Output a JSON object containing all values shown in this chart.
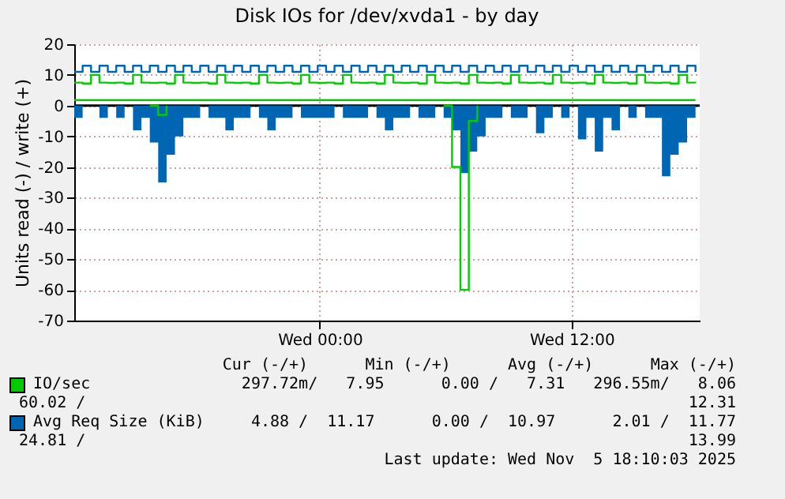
{
  "chart_data": {
    "type": "step",
    "title": "Disk IOs for /dev/xvda1 - by day",
    "ylabel": "Units read (-) / write (+)",
    "x": [
      "2025-11-04T12:18",
      "2025-11-04T12:42",
      "2025-11-04T13:06",
      "2025-11-04T13:30",
      "2025-11-04T13:54",
      "2025-11-04T14:18",
      "2025-11-04T14:42",
      "2025-11-04T15:06",
      "2025-11-04T15:30",
      "2025-11-04T15:54",
      "2025-11-04T16:18",
      "2025-11-04T16:42",
      "2025-11-04T17:06",
      "2025-11-04T17:30",
      "2025-11-04T17:54",
      "2025-11-04T18:18",
      "2025-11-04T18:42",
      "2025-11-04T19:06",
      "2025-11-04T19:30",
      "2025-11-04T19:54",
      "2025-11-04T20:18",
      "2025-11-04T20:42",
      "2025-11-04T21:06",
      "2025-11-04T21:30",
      "2025-11-04T21:54",
      "2025-11-04T22:18",
      "2025-11-04T22:42",
      "2025-11-04T23:06",
      "2025-11-04T23:30",
      "2025-11-04T23:54",
      "2025-11-05T00:18",
      "2025-11-05T00:42",
      "2025-11-05T01:06",
      "2025-11-05T01:30",
      "2025-11-05T01:54",
      "2025-11-05T02:18",
      "2025-11-05T02:42",
      "2025-11-05T03:06",
      "2025-11-05T03:30",
      "2025-11-05T03:54",
      "2025-11-05T04:18",
      "2025-11-05T04:42",
      "2025-11-05T05:06",
      "2025-11-05T05:30",
      "2025-11-05T05:54",
      "2025-11-05T06:18",
      "2025-11-05T06:42",
      "2025-11-05T07:06",
      "2025-11-05T07:30",
      "2025-11-05T07:54",
      "2025-11-05T08:18",
      "2025-11-05T08:42",
      "2025-11-05T09:06",
      "2025-11-05T09:30",
      "2025-11-05T09:54",
      "2025-11-05T10:18",
      "2025-11-05T10:42",
      "2025-11-05T11:06",
      "2025-11-05T11:30",
      "2025-11-05T11:54",
      "2025-11-05T12:18",
      "2025-11-05T12:42",
      "2025-11-05T13:06",
      "2025-11-05T13:30",
      "2025-11-05T13:54",
      "2025-11-05T14:18",
      "2025-11-05T14:42",
      "2025-11-05T15:06",
      "2025-11-05T15:30",
      "2025-11-05T15:54",
      "2025-11-05T16:18",
      "2025-11-05T16:42",
      "2025-11-05T17:06",
      "2025-11-05T17:30",
      "2025-11-05T17:54"
    ],
    "xlim": [
      "2025-11-04T12:18",
      "2025-11-05T18:06"
    ],
    "xticks": [
      {
        "value": "2025-11-05T00:00",
        "label": "Wed 00:00"
      },
      {
        "value": "2025-11-05T12:00",
        "label": "Wed 12:00"
      }
    ],
    "ylim": [
      -70,
      20
    ],
    "yticks": [
      -70,
      -60,
      -50,
      -40,
      -30,
      -20,
      -10,
      0,
      10,
      20
    ],
    "grid": true,
    "legend": "bottom",
    "series": [
      {
        "type": "area",
        "color": "#0066b3",
        "values": [
          -4,
          0,
          0,
          -4,
          0,
          -4,
          0,
          -8,
          -4,
          -12,
          -25,
          -16,
          -10,
          -4,
          -4,
          0,
          -4,
          -4,
          -8,
          -4,
          -4,
          0,
          -4,
          -8,
          -4,
          -4,
          0,
          -4,
          -4,
          -4,
          -4,
          0,
          -4,
          -4,
          -4,
          0,
          -4,
          -8,
          -4,
          -4,
          0,
          -4,
          -4,
          0,
          -4,
          -8,
          -22,
          -15,
          -10,
          -4,
          -4,
          0,
          -4,
          -4,
          0,
          -9,
          -4,
          0,
          -4,
          0,
          -11,
          -4,
          -15,
          -4,
          -8,
          0,
          -4,
          0,
          -4,
          -4,
          -23,
          -16,
          -12,
          -4,
          -4
        ]
      },
      {
        "color": "#00cc00",
        "values": [
          null,
          null,
          null,
          null,
          null,
          null,
          null,
          null,
          null,
          0,
          -3,
          0,
          null,
          null,
          null,
          null,
          null,
          null,
          null,
          null,
          null,
          null,
          null,
          null,
          null,
          null,
          null,
          null,
          null,
          null,
          null,
          null,
          null,
          null,
          null,
          null,
          null,
          null,
          null,
          null,
          null,
          null,
          null,
          null,
          0,
          -20,
          -60,
          -5,
          0,
          null,
          null,
          null,
          null,
          null,
          null,
          null,
          null,
          null,
          null,
          null,
          null,
          null,
          null,
          null,
          null,
          null,
          null,
          null,
          null,
          null,
          null,
          null,
          null,
          null,
          null
        ]
      },
      {
        "color": "#00cc00",
        "values": [
          1.8,
          1.8,
          1.8,
          1.8,
          1.8,
          1.8,
          1.8,
          1.8,
          1.8,
          1.8,
          1.8,
          1.8,
          1.8,
          1.8,
          1.8,
          1.8,
          1.8,
          1.8,
          1.8,
          1.8,
          1.8,
          1.8,
          1.8,
          1.8,
          1.8,
          1.8,
          1.8,
          1.8,
          1.8,
          1.8,
          1.8,
          1.8,
          1.8,
          1.8,
          1.8,
          1.8,
          1.8,
          1.8,
          1.8,
          1.8,
          1.8,
          1.8,
          1.8,
          1.8,
          1.8,
          1.8,
          1.8,
          1.8,
          1.8,
          1.8,
          1.8,
          1.8,
          1.8,
          1.8,
          1.8,
          1.8,
          1.8,
          1.8,
          1.8,
          1.8,
          1.8,
          1.8,
          1.8,
          1.8,
          1.8,
          1.8,
          1.8,
          1.8,
          1.8,
          1.8,
          1.8,
          1.8,
          1.8,
          1.8,
          1.8
        ]
      },
      {
        "name": "IO/sec",
        "color": "#00cc00",
        "values": [
          7.5,
          7.2,
          10,
          7.5,
          7.4,
          7.5,
          7.2,
          10,
          7.5,
          7.4,
          7.5,
          7.2,
          10,
          7.5,
          7.4,
          7.5,
          7.2,
          10,
          7.5,
          7.4,
          7.5,
          7.2,
          10,
          7.5,
          7.4,
          7.5,
          7.2,
          10,
          7.5,
          7.4,
          7.5,
          7.2,
          10,
          7.5,
          7.4,
          7.5,
          7.2,
          10,
          7.5,
          7.4,
          7.5,
          7.2,
          10,
          7.5,
          7.4,
          7.5,
          7.2,
          10,
          7.5,
          7.4,
          7.5,
          7.2,
          10,
          7.5,
          7.4,
          7.5,
          7.2,
          10,
          7.5,
          7.4,
          7.5,
          7.2,
          10,
          7.5,
          7.4,
          7.5,
          7.2,
          10,
          7.5,
          7.4,
          7.5,
          7.2,
          10,
          7.5,
          7.4
        ]
      },
      {
        "name": "Avg Req Size (KiB)",
        "color": "#0066b3",
        "values": [
          11,
          13,
          11,
          13,
          11,
          13,
          11,
          13,
          11,
          13,
          11,
          13,
          11,
          13,
          11,
          13,
          11,
          13,
          11,
          13,
          11,
          13,
          11,
          13,
          11,
          13,
          11,
          13,
          11,
          13,
          11,
          13,
          11,
          13,
          11,
          13,
          11,
          13,
          11,
          13,
          11,
          13,
          11,
          13,
          11,
          13,
          11,
          13,
          11,
          13,
          11,
          13,
          11,
          13,
          11,
          13,
          11,
          13,
          11,
          13,
          11,
          13,
          11,
          13,
          11,
          13,
          11,
          13,
          11,
          13,
          11,
          13,
          11,
          13,
          11
        ]
      }
    ],
    "ref_lines": [
      {
        "axis": "y",
        "value": 0,
        "color": "#000000"
      }
    ],
    "annotations": [
      "Cur (-/+)      Min (-/+)      Avg (-/+)      Max (-/+)",
      "297.72m/   7.95      0.00 /   7.31   296.55m/   8.06",
      "60.02 /",
      "12.31",
      "   4.88 /  11.17      0.00 /  10.97      2.01 /  11.77",
      "24.81 /",
      "13.99",
      "Last update: Wed Nov  5 18:10:03 2025"
    ]
  }
}
